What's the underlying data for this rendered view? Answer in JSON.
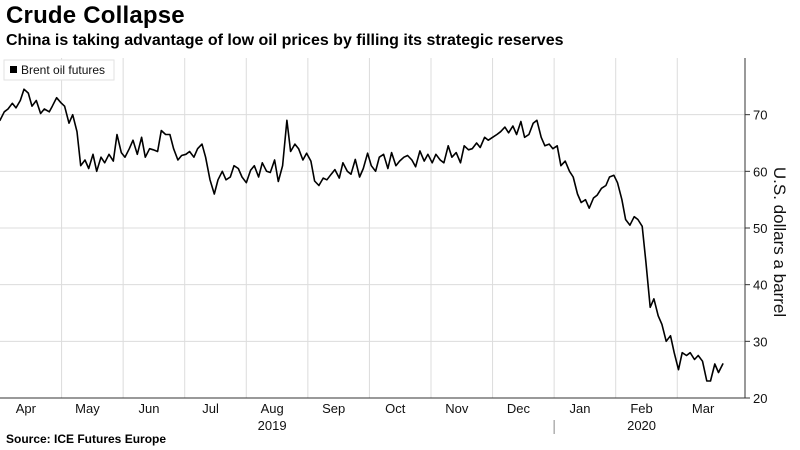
{
  "title": "Crude Collapse",
  "subtitle": "China is taking advantage of low oil prices by filling its strategic reserves",
  "source": "Source: ICE Futures Europe",
  "chart_data": {
    "type": "line",
    "title": "Crude Collapse",
    "subtitle": "China is taking advantage of low oil prices by filling its strategic reserves",
    "xlabel": "",
    "ylabel": "U.S. dollars a barrel",
    "ylim": [
      20,
      80
    ],
    "yticks": [
      20,
      30,
      40,
      50,
      60,
      70
    ],
    "grid": true,
    "legend_position": "top-left",
    "x_tick_labels": [
      "Apr",
      "May",
      "Jun",
      "Jul",
      "Aug",
      "Sep",
      "Oct",
      "Nov",
      "Dec",
      "Jan",
      "Feb",
      "Mar"
    ],
    "year_labels": [
      {
        "label": "2019",
        "month_index": 4
      },
      {
        "label": "2020",
        "month_index": 10
      }
    ],
    "x_range_months": [
      0,
      12.1
    ],
    "series": [
      {
        "name": "Brent oil futures",
        "color": "#000000",
        "x": [
          0.0,
          0.07,
          0.13,
          0.2,
          0.26,
          0.33,
          0.39,
          0.46,
          0.52,
          0.59,
          0.66,
          0.72,
          0.8,
          0.85,
          0.92,
          0.99,
          1.05,
          1.12,
          1.18,
          1.25,
          1.31,
          1.38,
          1.44,
          1.51,
          1.57,
          1.64,
          1.7,
          1.77,
          1.84,
          1.9,
          1.97,
          2.03,
          2.1,
          2.16,
          2.23,
          2.3,
          2.36,
          2.43,
          2.49,
          2.56,
          2.62,
          2.69,
          2.76,
          2.82,
          2.89,
          2.95,
          3.02,
          3.08,
          3.15,
          3.21,
          3.28,
          3.34,
          3.41,
          3.48,
          3.54,
          3.61,
          3.67,
          3.74,
          3.8,
          3.87,
          3.93,
          4.0,
          4.07,
          4.13,
          4.2,
          4.26,
          4.33,
          4.39,
          4.46,
          4.52,
          4.59,
          4.66,
          4.72,
          4.79,
          4.85,
          4.92,
          4.98,
          5.05,
          5.11,
          5.18,
          5.25,
          5.31,
          5.38,
          5.44,
          5.51,
          5.57,
          5.64,
          5.7,
          5.77,
          5.84,
          5.9,
          5.97,
          6.03,
          6.1,
          6.16,
          6.23,
          6.3,
          6.36,
          6.43,
          6.49,
          6.56,
          6.62,
          6.69,
          6.75,
          6.82,
          6.89,
          6.95,
          7.02,
          7.08,
          7.15,
          7.21,
          7.28,
          7.34,
          7.41,
          7.48,
          7.54,
          7.61,
          7.67,
          7.74,
          7.8,
          7.87,
          7.93,
          8.0,
          8.07,
          8.13,
          8.2,
          8.26,
          8.33,
          8.39,
          8.46,
          8.52,
          8.59,
          8.66,
          8.72,
          8.79,
          8.85,
          8.92,
          8.98,
          9.05,
          9.11,
          9.18,
          9.25,
          9.31,
          9.38,
          9.44,
          9.51,
          9.57,
          9.64,
          9.7,
          9.77,
          9.84,
          9.9,
          9.97,
          10.03,
          10.1,
          10.16,
          10.23,
          10.3,
          10.36,
          10.43,
          10.49,
          10.56,
          10.62,
          10.69,
          10.75,
          10.82,
          10.89,
          10.95,
          11.02,
          11.08,
          11.15,
          11.21,
          11.28,
          11.34,
          11.41,
          11.48,
          11.54,
          11.61,
          11.67,
          11.74
        ],
        "values": [
          69,
          70.5,
          71,
          72,
          71.2,
          72.5,
          74.5,
          73.8,
          71.5,
          72.5,
          70.2,
          71,
          70.5,
          71.5,
          73,
          72.1,
          71.5,
          68.5,
          70,
          67,
          61,
          62,
          60.5,
          63,
          60,
          62.5,
          61.5,
          63,
          61.8,
          66.5,
          63.3,
          62.5,
          64,
          65.5,
          63,
          66,
          62.5,
          64,
          63.8,
          63.5,
          67.2,
          66.5,
          66.5,
          64,
          62,
          62.8,
          63,
          63.5,
          62.5,
          64,
          64.8,
          62.5,
          58.5,
          56,
          58.5,
          60,
          58.5,
          59,
          61,
          60.5,
          59,
          58,
          60.2,
          61,
          59,
          61.5,
          60,
          59.8,
          62,
          58.2,
          61,
          69,
          63.5,
          64.8,
          64,
          62,
          63.2,
          61.8,
          58.3,
          57.5,
          58.8,
          58.5,
          59.5,
          60.3,
          58.8,
          61.5,
          60,
          59.5,
          62.1,
          59,
          60.5,
          63.2,
          61,
          60,
          62.5,
          63,
          60.5,
          63.3,
          61,
          61.8,
          62.5,
          62.8,
          62,
          60.8,
          63.6,
          61.8,
          63,
          61.5,
          63,
          62,
          61.5,
          64.5,
          62.5,
          63.3,
          61.5,
          64.5,
          63.8,
          64,
          65,
          64.2,
          66,
          65.5,
          66,
          66.5,
          67,
          67.8,
          66.8,
          68,
          66.5,
          68.8,
          66,
          66.5,
          68.5,
          69,
          66,
          64.5,
          64.8,
          64,
          64.5,
          61,
          61.8,
          60,
          59,
          56,
          54.5,
          55,
          53.5,
          55.3,
          55.8,
          57,
          57.5,
          59,
          59.3,
          58,
          55,
          51.5,
          50.5,
          52,
          51.5,
          50.3,
          44,
          36,
          37.5,
          34.5,
          33,
          30,
          31,
          28,
          25,
          28,
          27.5,
          28,
          26.8,
          27.5,
          26.5,
          23,
          23,
          26,
          24.5,
          26
        ]
      }
    ]
  }
}
